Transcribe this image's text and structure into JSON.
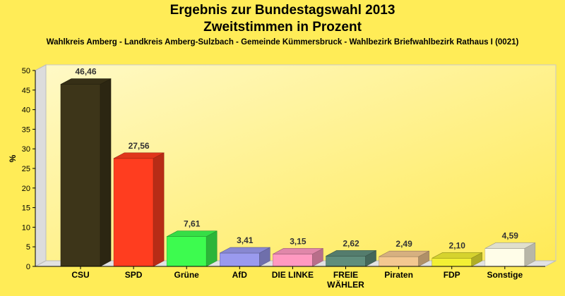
{
  "chart_data": {
    "type": "bar",
    "title": "Ergebnis zur Bundestagswahl 2013",
    "subtitle": "Zweitstimmen in Prozent",
    "caption": "Wahlkreis Amberg - Landkreis Amberg-Sulzbach - Gemeinde Kümmersbruck - Wahlbezirk Briefwahlbezirk Rathaus I (0021)",
    "ylabel": "%",
    "ylim": [
      0,
      50
    ],
    "yticks": [
      "0",
      "5",
      "10",
      "15",
      "20",
      "25",
      "30",
      "35",
      "40",
      "45",
      "50"
    ],
    "grid": false,
    "categories": [
      "CSU",
      "SPD",
      "Grüne",
      "AfD",
      "DIE LINKE",
      "FREIE WÄHLER",
      "Piraten",
      "FDP",
      "Sonstige"
    ],
    "category_lines": [
      [
        "CSU"
      ],
      [
        "SPD"
      ],
      [
        "Grüne"
      ],
      [
        "AfD"
      ],
      [
        "DIE LINKE"
      ],
      [
        "FREIE",
        "WÄHLER"
      ],
      [
        "Piraten"
      ],
      [
        "FDP"
      ],
      [
        "Sonstige"
      ]
    ],
    "values": [
      46.46,
      27.56,
      7.61,
      3.41,
      3.15,
      2.62,
      2.49,
      2.1,
      4.59
    ],
    "value_labels": [
      "46,46",
      "27,56",
      "7,61",
      "3,41",
      "3,15",
      "2,62",
      "2,49",
      "2,10",
      "4,59"
    ],
    "colors": [
      "#3d3519",
      "#ff3d1f",
      "#3dfb4f",
      "#9a9aee",
      "#ff99c0",
      "#5f8d7c",
      "#f3c891",
      "#f3f034",
      "#fffde8"
    ]
  }
}
